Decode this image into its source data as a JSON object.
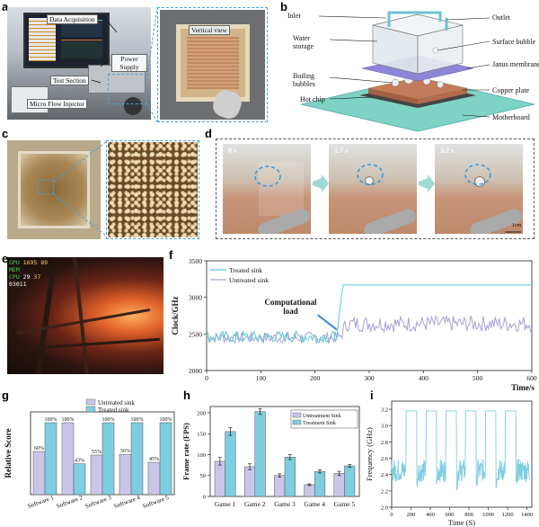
{
  "panels": {
    "a": {
      "letter": "a",
      "labels": {
        "data_acquisition": "Data Acquisition",
        "power_supply": "Power Supply",
        "test_section": "Test Section",
        "micro_flow_injector": "Micro Flow Injector",
        "vertical_view": "Vertical view"
      }
    },
    "b": {
      "letter": "b",
      "labels": {
        "inlet": "Inlet",
        "outlet": "Outlet",
        "water_storage": "Water storage",
        "surface_bubble": "Surface bubble",
        "janus_membrane": "Janus membrane",
        "boiling_bubbles": "Boiling bubbles",
        "copper_plate": "Copper plate",
        "hot_chip": "Hot chip",
        "motherboard": "Motherboard"
      }
    },
    "c": {
      "letter": "c"
    },
    "d": {
      "letter": "d",
      "times": [
        "0 s",
        "1.7 s",
        "3.2 s"
      ],
      "scale": "1cm"
    },
    "e": {
      "letter": "e",
      "hud": {
        "gpu": "GPU",
        "mem": "MEM",
        "cpu": "CPU",
        "val1": "1695",
        "val2": "89",
        "val3": "29",
        "val4": "03011",
        "val5": "37"
      }
    },
    "f": {
      "letter": "f",
      "annotation": "Computational load",
      "chart_data": {
        "type": "line",
        "xlabel": "Time/s",
        "ylabel": "Clock/GHz",
        "xlim": [
          0,
          600
        ],
        "ylim": [
          2000,
          3500
        ],
        "xticks": [
          0,
          100,
          200,
          300,
          400,
          500,
          600
        ],
        "yticks": [
          2000,
          2500,
          3000,
          3500
        ],
        "legend": "top-left",
        "series": [
          {
            "name": "Treated sink",
            "color": "#5fc4d9",
            "description_points": [
              [
                0,
                2460
              ],
              [
                240,
                2450
              ],
              [
                245,
                3100
              ],
              [
                252,
                3200
              ],
              [
                260,
                3170
              ],
              [
                600,
                3170
              ]
            ]
          },
          {
            "name": "Untreated sink",
            "color": "#a6a2d6",
            "description_points": [
              [
                0,
                2450
              ],
              [
                240,
                2450
              ],
              [
                250,
                2500
              ],
              [
                260,
                2650
              ],
              [
                600,
                2640
              ]
            ]
          }
        ]
      }
    },
    "g": {
      "letter": "g",
      "chart_data": {
        "type": "bar",
        "ylabel": "Relative Score",
        "legend": "top-center",
        "categories": [
          "Software 1",
          "Software 2",
          "Software 3",
          "Software 4",
          "Software 5"
        ],
        "series": [
          {
            "name": "Untreated sink",
            "color": "#c9c6ea",
            "values": [
              60,
              100,
              55,
              56,
              45
            ]
          },
          {
            "name": "Treated sink",
            "color": "#7fcde0",
            "values": [
              100,
              43,
              100,
              100,
              100
            ]
          }
        ],
        "data_labels": [
          [
            "60%",
            "100%"
          ],
          [
            "100%",
            "43%"
          ],
          [
            "55%",
            "100%"
          ],
          [
            "56%",
            "100%"
          ],
          [
            "45%",
            "100%"
          ]
        ]
      }
    },
    "h": {
      "letter": "h",
      "chart_data": {
        "type": "bar",
        "ylabel": "Frame rate (FPS)",
        "legend": "top-right",
        "ylim": [
          0,
          215
        ],
        "yticks": [
          0,
          50,
          100,
          150,
          200
        ],
        "categories": [
          "Game 1",
          "Game 2",
          "Game 3",
          "Game 4",
          "Game 5"
        ],
        "series": [
          {
            "name": "Untreatment Sink",
            "color": "#c9c6ea",
            "values": [
              84,
              71,
              50,
              28,
              55
            ],
            "errors": [
              9,
              7,
              4,
              2,
              5
            ]
          },
          {
            "name": "Treatment Sink",
            "color": "#7fcde0",
            "values": [
              155,
              203,
              94,
              60,
              73
            ],
            "errors": [
              9,
              7,
              6,
              4,
              3
            ]
          }
        ]
      }
    },
    "i": {
      "letter": "i",
      "chart_data": {
        "type": "line",
        "xlabel": "Time (S)",
        "ylabel": "Frequency (GHz)",
        "xlim": [
          0,
          1450
        ],
        "ylim": [
          2.0,
          3.3
        ],
        "xticks": [
          0,
          200,
          400,
          600,
          800,
          1000,
          1200,
          1400
        ],
        "yticks": [
          2.0,
          2.2,
          2.4,
          2.6,
          2.8,
          3.0,
          3.2
        ],
        "color": "#7fcde0",
        "cycles_start": [
          150,
          355,
          560,
          765,
          970,
          1175
        ],
        "high_value": 3.18,
        "low_value": 2.45
      }
    }
  }
}
